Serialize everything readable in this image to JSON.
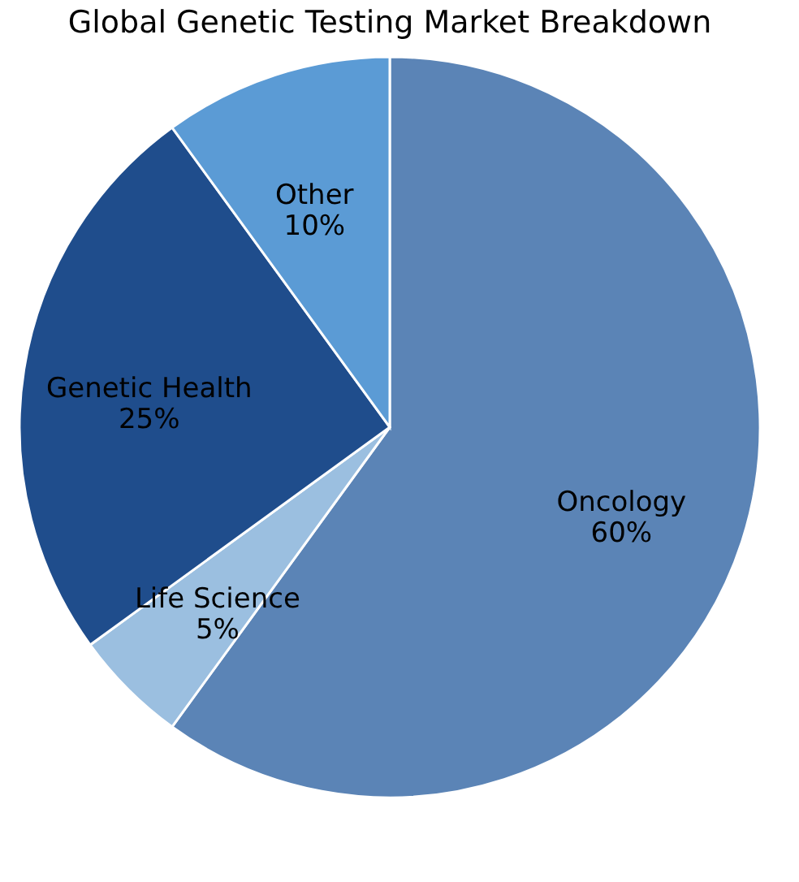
{
  "chart_data": {
    "type": "pie",
    "title": "Global Genetic Testing Market Breakdown",
    "categories": [
      "Oncology",
      "Life Science",
      "Genetic Health",
      "Other"
    ],
    "values": [
      60,
      5,
      25,
      10
    ],
    "value_labels": [
      "60%",
      "5%",
      "25%",
      "10%"
    ],
    "colors": [
      "#5b84b6",
      "#9bbfe0",
      "#1f4d8c",
      "#5b9bd5"
    ],
    "legend": false
  }
}
